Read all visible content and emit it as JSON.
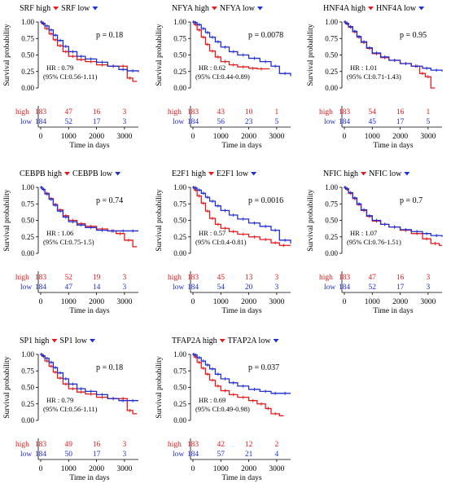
{
  "chart_data": [
    {
      "type": "line",
      "legend_high": "SRF high",
      "legend_low": "SRF low",
      "p_text": "p = 0.18",
      "hr_text": "HR : 0.79",
      "ci_text": "(95% CI:0.56-1.11)",
      "ylabel": "Survival probability",
      "xlabel": "Time in days",
      "xlim": [
        0,
        3500
      ],
      "ylim": [
        0,
        1
      ],
      "x_ticks": [
        "0",
        "1000",
        "2000",
        "3000"
      ],
      "y_ticks": [
        "0.00",
        "0.25",
        "0.50",
        "0.75",
        "1.00"
      ],
      "risk_high_label": "high",
      "risk_low_label": "low",
      "risk_high": [
        "183",
        "47",
        "16",
        "3"
      ],
      "risk_low": [
        "184",
        "52",
        "17",
        "3"
      ],
      "series": [
        {
          "name": "high",
          "color": "#e41a1c",
          "x": [
            0,
            50,
            150,
            300,
            450,
            600,
            800,
            1000,
            1300,
            1600,
            2000,
            2400,
            2800,
            3100,
            3300
          ],
          "y": [
            1.0,
            0.97,
            0.9,
            0.82,
            0.73,
            0.64,
            0.55,
            0.48,
            0.43,
            0.4,
            0.35,
            0.33,
            0.33,
            0.15,
            0.1
          ]
        },
        {
          "name": "low",
          "color": "#1f2fd0",
          "x": [
            0,
            50,
            150,
            300,
            450,
            600,
            800,
            1000,
            1300,
            1600,
            2000,
            2400,
            2800,
            3100,
            3500
          ],
          "y": [
            1.0,
            0.98,
            0.94,
            0.88,
            0.8,
            0.72,
            0.63,
            0.55,
            0.48,
            0.44,
            0.39,
            0.33,
            0.28,
            0.26,
            0.24
          ]
        }
      ]
    },
    {
      "type": "line",
      "legend_high": "NFYA high",
      "legend_low": "NFYA low",
      "p_text": "p = 0.0078",
      "hr_text": "HR : 0.62",
      "ci_text": "(95% CI:0.44-0.89)",
      "ylabel": "Survival probability",
      "xlabel": "Time in days",
      "xlim": [
        0,
        3500
      ],
      "ylim": [
        0,
        1
      ],
      "x_ticks": [
        "0",
        "1000",
        "2000",
        "3000"
      ],
      "y_ticks": [
        "0.00",
        "0.25",
        "0.50",
        "0.75",
        "1.00"
      ],
      "risk_high_label": "high",
      "risk_low_label": "low",
      "risk_high": [
        "183",
        "43",
        "10",
        "1"
      ],
      "risk_low": [
        "184",
        "56",
        "23",
        "5"
      ],
      "series": [
        {
          "name": "high",
          "color": "#e41a1c",
          "x": [
            0,
            50,
            150,
            300,
            450,
            600,
            800,
            1000,
            1300,
            1600,
            2000,
            2300,
            2600
          ],
          "y": [
            1.0,
            0.96,
            0.88,
            0.77,
            0.66,
            0.56,
            0.47,
            0.4,
            0.35,
            0.32,
            0.3,
            0.29,
            0.29
          ]
        },
        {
          "name": "low",
          "color": "#1f2fd0",
          "x": [
            0,
            50,
            150,
            300,
            450,
            600,
            800,
            1000,
            1300,
            1600,
            2000,
            2400,
            2800,
            3100,
            3500
          ],
          "y": [
            1.0,
            0.99,
            0.96,
            0.9,
            0.84,
            0.77,
            0.7,
            0.62,
            0.55,
            0.5,
            0.45,
            0.4,
            0.33,
            0.22,
            0.18
          ]
        }
      ]
    },
    {
      "type": "line",
      "legend_high": "HNF4A high",
      "legend_low": "HNF4A low",
      "p_text": "p = 0.95",
      "hr_text": "HR : 1.01",
      "ci_text": "(95% CI:0.71-1.43)",
      "ylabel": "Survival probability",
      "xlabel": "Time in days",
      "xlim": [
        0,
        3500
      ],
      "ylim": [
        0,
        1
      ],
      "x_ticks": [
        "0",
        "1000",
        "2000",
        "3000"
      ],
      "y_ticks": [
        "0.00",
        "0.25",
        "0.50",
        "0.75",
        "1.00"
      ],
      "risk_high_label": "high",
      "risk_low_label": "low",
      "risk_high": [
        "183",
        "54",
        "16",
        "1"
      ],
      "risk_low": [
        "184",
        "45",
        "17",
        "5"
      ],
      "series": [
        {
          "name": "high",
          "color": "#e41a1c",
          "x": [
            0,
            50,
            150,
            300,
            450,
            600,
            800,
            1000,
            1300,
            1600,
            2000,
            2400,
            2700,
            2900,
            3100
          ],
          "y": [
            1.0,
            0.97,
            0.92,
            0.85,
            0.77,
            0.69,
            0.6,
            0.52,
            0.46,
            0.42,
            0.37,
            0.33,
            0.22,
            0.17,
            0.0
          ]
        },
        {
          "name": "low",
          "color": "#1f2fd0",
          "x": [
            0,
            50,
            150,
            300,
            450,
            600,
            800,
            1000,
            1300,
            1600,
            2000,
            2400,
            2800,
            3100,
            3500
          ],
          "y": [
            1.0,
            0.98,
            0.93,
            0.86,
            0.78,
            0.7,
            0.61,
            0.53,
            0.47,
            0.42,
            0.37,
            0.33,
            0.3,
            0.27,
            0.25
          ]
        }
      ]
    },
    {
      "type": "line",
      "legend_high": "CEBPB high",
      "legend_low": "CEBPB low",
      "p_text": "p = 0.74",
      "hr_text": "HR : 1.06",
      "ci_text": "(95% CI:0.75-1.5)",
      "ylabel": "Survival probability",
      "xlabel": "Time in days",
      "xlim": [
        0,
        3500
      ],
      "ylim": [
        0,
        1
      ],
      "x_ticks": [
        "0",
        "1000",
        "2000",
        "3000"
      ],
      "y_ticks": [
        "0.00",
        "0.25",
        "0.50",
        "0.75",
        "1.00"
      ],
      "risk_high_label": "high",
      "risk_low_label": "low",
      "risk_high": [
        "183",
        "52",
        "19",
        "3"
      ],
      "risk_low": [
        "184",
        "47",
        "14",
        "3"
      ],
      "series": [
        {
          "name": "high",
          "color": "#e41a1c",
          "x": [
            0,
            50,
            150,
            300,
            450,
            600,
            800,
            1000,
            1300,
            1600,
            2000,
            2400,
            2700,
            3000,
            3300
          ],
          "y": [
            1.0,
            0.97,
            0.91,
            0.83,
            0.74,
            0.66,
            0.57,
            0.5,
            0.45,
            0.41,
            0.37,
            0.34,
            0.3,
            0.2,
            0.1
          ]
        },
        {
          "name": "low",
          "color": "#1f2fd0",
          "x": [
            0,
            50,
            150,
            300,
            450,
            600,
            800,
            1000,
            1300,
            1600,
            2000,
            2400,
            2800,
            3100,
            3500
          ],
          "y": [
            1.0,
            0.97,
            0.9,
            0.82,
            0.73,
            0.64,
            0.55,
            0.48,
            0.43,
            0.39,
            0.35,
            0.34,
            0.34,
            0.34,
            0.34
          ]
        }
      ]
    },
    {
      "type": "line",
      "legend_high": "E2F1 high",
      "legend_low": "E2F1 low",
      "p_text": "p = 0.0016",
      "hr_text": "HR : 0.57",
      "ci_text": "(95% CI:0.4-0.81)",
      "ylabel": "Survival probability",
      "xlabel": "Time in days",
      "xlim": [
        0,
        3500
      ],
      "ylim": [
        0,
        1
      ],
      "x_ticks": [
        "0",
        "1000",
        "2000",
        "3000"
      ],
      "y_ticks": [
        "0.00",
        "0.25",
        "0.50",
        "0.75",
        "1.00"
      ],
      "risk_high_label": "high",
      "risk_low_label": "low",
      "risk_high": [
        "183",
        "45",
        "13",
        "3"
      ],
      "risk_low": [
        "184",
        "54",
        "20",
        "3"
      ],
      "series": [
        {
          "name": "high",
          "color": "#e41a1c",
          "x": [
            0,
            50,
            150,
            300,
            450,
            600,
            800,
            1000,
            1300,
            1600,
            2000,
            2400,
            2800,
            3100,
            3400
          ],
          "y": [
            1.0,
            0.96,
            0.87,
            0.76,
            0.64,
            0.53,
            0.44,
            0.38,
            0.33,
            0.29,
            0.25,
            0.21,
            0.16,
            0.12,
            0.12
          ]
        },
        {
          "name": "low",
          "color": "#1f2fd0",
          "x": [
            0,
            50,
            150,
            300,
            450,
            600,
            800,
            1000,
            1300,
            1600,
            2000,
            2400,
            2800,
            3100,
            3500
          ],
          "y": [
            1.0,
            0.99,
            0.96,
            0.91,
            0.85,
            0.79,
            0.72,
            0.65,
            0.58,
            0.52,
            0.46,
            0.41,
            0.35,
            0.2,
            0.15
          ]
        }
      ]
    },
    {
      "type": "line",
      "legend_high": "NFIC high",
      "legend_low": "NFIC low",
      "p_text": "p = 0.7",
      "hr_text": "HR : 1.07",
      "ci_text": "(95% CI:0.76-1.51)",
      "ylabel": "Survival probability",
      "xlabel": "Time in days",
      "xlim": [
        0,
        3500
      ],
      "ylim": [
        0,
        1
      ],
      "x_ticks": [
        "0",
        "1000",
        "2000",
        "3000"
      ],
      "y_ticks": [
        "0.00",
        "0.25",
        "0.50",
        "0.75",
        "1.00"
      ],
      "risk_high_label": "high",
      "risk_low_label": "low",
      "risk_high": [
        "183",
        "47",
        "16",
        "3"
      ],
      "risk_low": [
        "184",
        "52",
        "17",
        "3"
      ],
      "series": [
        {
          "name": "high",
          "color": "#e41a1c",
          "x": [
            0,
            50,
            150,
            300,
            450,
            600,
            800,
            1000,
            1300,
            1600,
            2000,
            2400,
            2800,
            3100,
            3400
          ],
          "y": [
            1.0,
            0.97,
            0.91,
            0.83,
            0.74,
            0.65,
            0.56,
            0.49,
            0.44,
            0.4,
            0.35,
            0.3,
            0.22,
            0.15,
            0.12
          ]
        },
        {
          "name": "low",
          "color": "#1f2fd0",
          "x": [
            0,
            50,
            150,
            300,
            450,
            600,
            800,
            1000,
            1300,
            1600,
            2000,
            2400,
            2800,
            3100,
            3500
          ],
          "y": [
            1.0,
            0.98,
            0.92,
            0.84,
            0.75,
            0.66,
            0.57,
            0.5,
            0.44,
            0.4,
            0.36,
            0.33,
            0.3,
            0.27,
            0.25
          ]
        }
      ]
    },
    {
      "type": "line",
      "legend_high": "SP1 high",
      "legend_low": "SP1 low",
      "p_text": "p = 0.18",
      "hr_text": "HR : 0.79",
      "ci_text": "(95% CI:0.56-1.11)",
      "ylabel": "Survival probability",
      "xlabel": "Time in days",
      "xlim": [
        0,
        3500
      ],
      "ylim": [
        0,
        1
      ],
      "x_ticks": [
        "0",
        "1000",
        "2000",
        "3000"
      ],
      "y_ticks": [
        "0.00",
        "0.25",
        "0.50",
        "0.75",
        "1.00"
      ],
      "risk_high_label": "high",
      "risk_low_label": "low",
      "risk_high": [
        "183",
        "49",
        "16",
        "3"
      ],
      "risk_low": [
        "184",
        "50",
        "17",
        "3"
      ],
      "series": [
        {
          "name": "high",
          "color": "#e41a1c",
          "x": [
            0,
            50,
            150,
            300,
            450,
            600,
            800,
            1000,
            1300,
            1600,
            2000,
            2400,
            2800,
            3100,
            3300
          ],
          "y": [
            1.0,
            0.97,
            0.9,
            0.82,
            0.73,
            0.64,
            0.55,
            0.48,
            0.43,
            0.4,
            0.35,
            0.33,
            0.33,
            0.15,
            0.1
          ]
        },
        {
          "name": "low",
          "color": "#1f2fd0",
          "x": [
            0,
            50,
            150,
            300,
            450,
            600,
            800,
            1000,
            1300,
            1600,
            2000,
            2400,
            2800,
            3100,
            3500
          ],
          "y": [
            1.0,
            0.98,
            0.94,
            0.88,
            0.8,
            0.72,
            0.63,
            0.55,
            0.48,
            0.44,
            0.39,
            0.33,
            0.3,
            0.3,
            0.3
          ]
        }
      ]
    },
    {
      "type": "line",
      "legend_high": "TFAP2A high",
      "legend_low": "TFAP2A low",
      "p_text": "p = 0.037",
      "hr_text": "HR : 0.69",
      "ci_text": "(95% CI:0.49-0.98)",
      "ylabel": "Survival probability",
      "xlabel": "Time in days",
      "xlim": [
        0,
        3500
      ],
      "ylim": [
        0,
        1
      ],
      "x_ticks": [
        "0",
        "1000",
        "2000",
        "3000"
      ],
      "y_ticks": [
        "0.00",
        "0.25",
        "0.50",
        "0.75",
        "1.00"
      ],
      "risk_high_label": "high",
      "risk_low_label": "low",
      "risk_high": [
        "183",
        "42",
        "12",
        "2"
      ],
      "risk_low": [
        "184",
        "57",
        "21",
        "4"
      ],
      "series": [
        {
          "name": "high",
          "color": "#e41a1c",
          "x": [
            0,
            50,
            150,
            300,
            450,
            600,
            800,
            1000,
            1300,
            1600,
            2000,
            2300,
            2600,
            2800,
            3100
          ],
          "y": [
            1.0,
            0.96,
            0.88,
            0.79,
            0.7,
            0.61,
            0.52,
            0.45,
            0.39,
            0.35,
            0.3,
            0.25,
            0.18,
            0.1,
            0.07
          ]
        },
        {
          "name": "low",
          "color": "#1f2fd0",
          "x": [
            0,
            50,
            150,
            300,
            450,
            600,
            800,
            1000,
            1300,
            1600,
            2000,
            2400,
            2800,
            3100,
            3500
          ],
          "y": [
            1.0,
            0.99,
            0.95,
            0.9,
            0.84,
            0.78,
            0.7,
            0.63,
            0.57,
            0.52,
            0.47,
            0.44,
            0.41,
            0.41,
            0.41
          ]
        }
      ]
    }
  ]
}
